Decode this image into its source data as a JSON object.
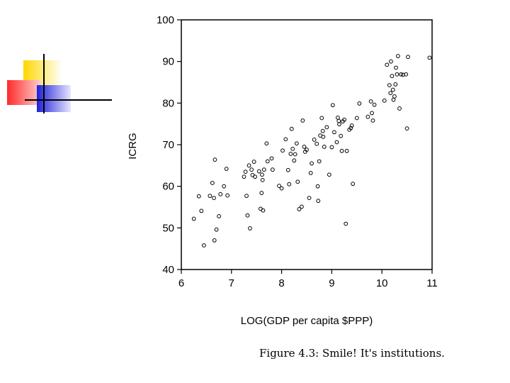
{
  "chart_data": {
    "type": "scatter",
    "xlabel": "LOG(GDP per capita $PPP)",
    "ylabel": "ICRG",
    "xlim": [
      6,
      11
    ],
    "ylim": [
      40,
      100
    ],
    "xticks": [
      "6",
      "7",
      "8",
      "9",
      "10",
      "11"
    ],
    "yticks": [
      "40",
      "50",
      "60",
      "70",
      "80",
      "90",
      "100"
    ],
    "grid": false,
    "points": [
      [
        6.25,
        52.2
      ],
      [
        6.35,
        57.6
      ],
      [
        6.4,
        54.1
      ],
      [
        6.45,
        45.8
      ],
      [
        6.57,
        57.7
      ],
      [
        6.62,
        60.8
      ],
      [
        6.65,
        57.2
      ],
      [
        6.66,
        47.0
      ],
      [
        6.67,
        66.4
      ],
      [
        6.7,
        49.6
      ],
      [
        6.75,
        52.8
      ],
      [
        6.78,
        58.1
      ],
      [
        6.85,
        60.0
      ],
      [
        6.9,
        64.2
      ],
      [
        6.92,
        57.8
      ],
      [
        7.25,
        62.3
      ],
      [
        7.28,
        63.5
      ],
      [
        7.3,
        57.7
      ],
      [
        7.32,
        53.0
      ],
      [
        7.35,
        65.0
      ],
      [
        7.37,
        49.9
      ],
      [
        7.4,
        64.0
      ],
      [
        7.42,
        62.7
      ],
      [
        7.45,
        65.9
      ],
      [
        7.47,
        62.3
      ],
      [
        7.55,
        63.6
      ],
      [
        7.58,
        54.6
      ],
      [
        7.6,
        58.4
      ],
      [
        7.61,
        62.8
      ],
      [
        7.62,
        61.5
      ],
      [
        7.63,
        54.2
      ],
      [
        7.65,
        64.0
      ],
      [
        7.7,
        70.3
      ],
      [
        7.72,
        66.0
      ],
      [
        7.8,
        66.7
      ],
      [
        7.82,
        64.0
      ],
      [
        7.95,
        60.1
      ],
      [
        8.0,
        59.5
      ],
      [
        8.02,
        68.6
      ],
      [
        8.08,
        71.3
      ],
      [
        8.13,
        63.9
      ],
      [
        8.15,
        60.5
      ],
      [
        8.18,
        67.8
      ],
      [
        8.2,
        73.8
      ],
      [
        8.22,
        69.0
      ],
      [
        8.25,
        66.2
      ],
      [
        8.27,
        67.7
      ],
      [
        8.3,
        70.3
      ],
      [
        8.32,
        61.1
      ],
      [
        8.35,
        54.5
      ],
      [
        8.4,
        55.1
      ],
      [
        8.42,
        75.8
      ],
      [
        8.45,
        69.5
      ],
      [
        8.47,
        68.3
      ],
      [
        8.5,
        68.8
      ],
      [
        8.55,
        57.2
      ],
      [
        8.58,
        63.2
      ],
      [
        8.6,
        65.5
      ],
      [
        8.65,
        71.2
      ],
      [
        8.7,
        70.2
      ],
      [
        8.72,
        60.0
      ],
      [
        8.73,
        56.5
      ],
      [
        8.75,
        66.0
      ],
      [
        8.77,
        72.2
      ],
      [
        8.8,
        76.4
      ],
      [
        8.82,
        73.3
      ],
      [
        8.83,
        71.9
      ],
      [
        8.85,
        69.5
      ],
      [
        8.9,
        74.2
      ],
      [
        8.95,
        62.8
      ],
      [
        9.0,
        69.4
      ],
      [
        9.02,
        79.5
      ],
      [
        9.05,
        73.0
      ],
      [
        9.1,
        70.6
      ],
      [
        9.12,
        76.5
      ],
      [
        9.14,
        75.7
      ],
      [
        9.15,
        74.9
      ],
      [
        9.18,
        72.1
      ],
      [
        9.2,
        68.5
      ],
      [
        9.22,
        75.6
      ],
      [
        9.25,
        76.0
      ],
      [
        9.28,
        51.0
      ],
      [
        9.3,
        68.5
      ],
      [
        9.35,
        73.6
      ],
      [
        9.38,
        74.0
      ],
      [
        9.4,
        74.6
      ],
      [
        9.42,
        60.6
      ],
      [
        9.5,
        76.4
      ],
      [
        9.55,
        79.9
      ],
      [
        9.72,
        76.7
      ],
      [
        9.78,
        80.4
      ],
      [
        9.8,
        77.6
      ],
      [
        9.82,
        75.8
      ],
      [
        9.85,
        79.6
      ],
      [
        10.05,
        80.6
      ],
      [
        10.1,
        89.2
      ],
      [
        10.15,
        84.3
      ],
      [
        10.17,
        82.4
      ],
      [
        10.18,
        90.0
      ],
      [
        10.2,
        86.5
      ],
      [
        10.22,
        83.2
      ],
      [
        10.23,
        80.8
      ],
      [
        10.25,
        81.6
      ],
      [
        10.27,
        84.5
      ],
      [
        10.28,
        88.5
      ],
      [
        10.3,
        86.9
      ],
      [
        10.32,
        91.3
      ],
      [
        10.35,
        78.7
      ],
      [
        10.38,
        86.9
      ],
      [
        10.42,
        86.8
      ],
      [
        10.48,
        86.9
      ],
      [
        10.5,
        73.9
      ],
      [
        10.52,
        91.1
      ],
      [
        10.95,
        90.9
      ]
    ]
  },
  "caption": "Figure 4.3: Smile! It's institutions.",
  "colors": {
    "logo_yellow": "#ffd700",
    "logo_red": "#ff3333",
    "logo_blue": "#2a2ae0"
  }
}
